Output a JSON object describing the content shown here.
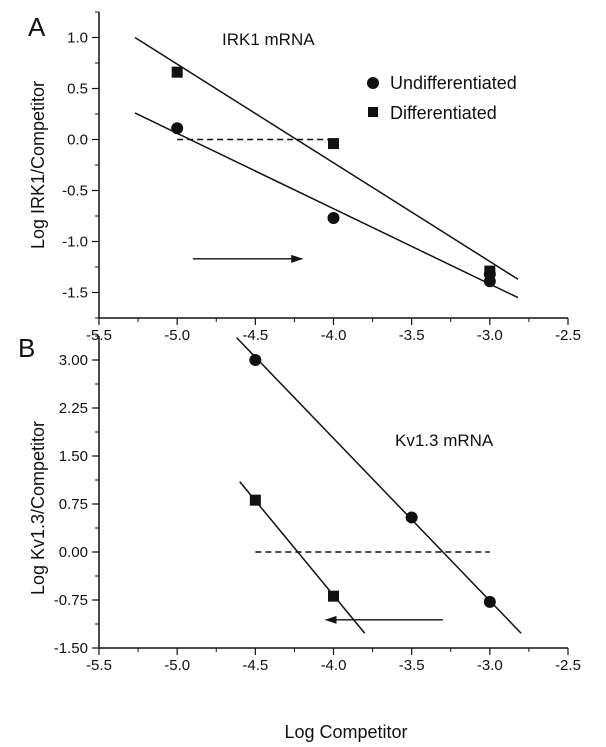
{
  "chart_data": [
    {
      "type": "scatter",
      "panel_label": "A",
      "title": "IRK1 mRNA",
      "xlabel": "",
      "ylabel": "Log IRK1/Competitor",
      "xlim": [
        -5.5,
        -2.5
      ],
      "ylim": [
        -1.75,
        1.25
      ],
      "xticks": [
        "-5.5",
        "-5.0",
        "-4.5",
        "-4.0",
        "-3.5",
        "-3.0",
        "-2.5"
      ],
      "yticks": [
        "-1.5",
        "-1.0",
        "-0.5",
        "0.0",
        "0.5",
        "1.0"
      ],
      "legend": {
        "position": "top-right",
        "items": [
          {
            "label": "Undifferentiated",
            "marker": "circle"
          },
          {
            "label": "Differentiated",
            "marker": "square"
          }
        ]
      },
      "series": [
        {
          "name": "Undifferentiated",
          "marker": "circle",
          "x": [
            -5.0,
            -4.0,
            -3.0,
            -3.0
          ],
          "y": [
            0.11,
            -0.77,
            -1.32,
            -1.39
          ],
          "fit": {
            "x": [
              -5.27,
              -2.82
            ],
            "y": [
              0.26,
              -1.55
            ]
          }
        },
        {
          "name": "Differentiated",
          "marker": "square",
          "x": [
            -5.0,
            -4.0,
            -3.0
          ],
          "y": [
            0.66,
            -0.04,
            -1.29
          ],
          "fit": {
            "x": [
              -5.27,
              -2.82
            ],
            "y": [
              1.0,
              -1.37
            ]
          }
        }
      ],
      "reference_line": {
        "x": [
          -5.0,
          -4.0
        ],
        "y": [
          0.0,
          0.0
        ],
        "style": "dashed"
      },
      "arrow": {
        "x": [
          -4.9,
          -4.2
        ],
        "y": [
          -1.17,
          -1.17
        ]
      }
    },
    {
      "type": "scatter",
      "panel_label": "B",
      "title": "Kv1.3 mRNA",
      "xlabel": "Log Competitor",
      "ylabel": "Log Kv1.3/Competitor",
      "xlim": [
        -5.5,
        -2.5
      ],
      "ylim": [
        -1.5,
        3.375
      ],
      "xticks": [
        "-5.5",
        "-5.0",
        "-4.5",
        "-4.0",
        "-3.5",
        "-3.0",
        "-2.5"
      ],
      "yticks": [
        "-1.50",
        "-0.75",
        "0.00",
        "0.75",
        "1.50",
        "2.25",
        "3.00"
      ],
      "series": [
        {
          "name": "Undifferentiated",
          "marker": "circle",
          "x": [
            -4.5,
            -3.5,
            -3.0
          ],
          "y": [
            3.0,
            0.54,
            -0.78
          ],
          "fit": {
            "x": [
              -4.62,
              -2.8
            ],
            "y": [
              3.35,
              -1.27
            ]
          }
        },
        {
          "name": "Differentiated",
          "marker": "square",
          "x": [
            -4.5,
            -4.0
          ],
          "y": [
            0.81,
            -0.69
          ],
          "fit": {
            "x": [
              -4.6,
              -3.8
            ],
            "y": [
              1.1,
              -1.27
            ]
          }
        }
      ],
      "reference_line": {
        "x": [
          -4.5,
          -3.0
        ],
        "y": [
          0.0,
          0.0
        ],
        "style": "dashed"
      },
      "arrow": {
        "x": [
          -3.3,
          -4.05
        ],
        "y": [
          -1.06,
          -1.06
        ]
      }
    }
  ]
}
